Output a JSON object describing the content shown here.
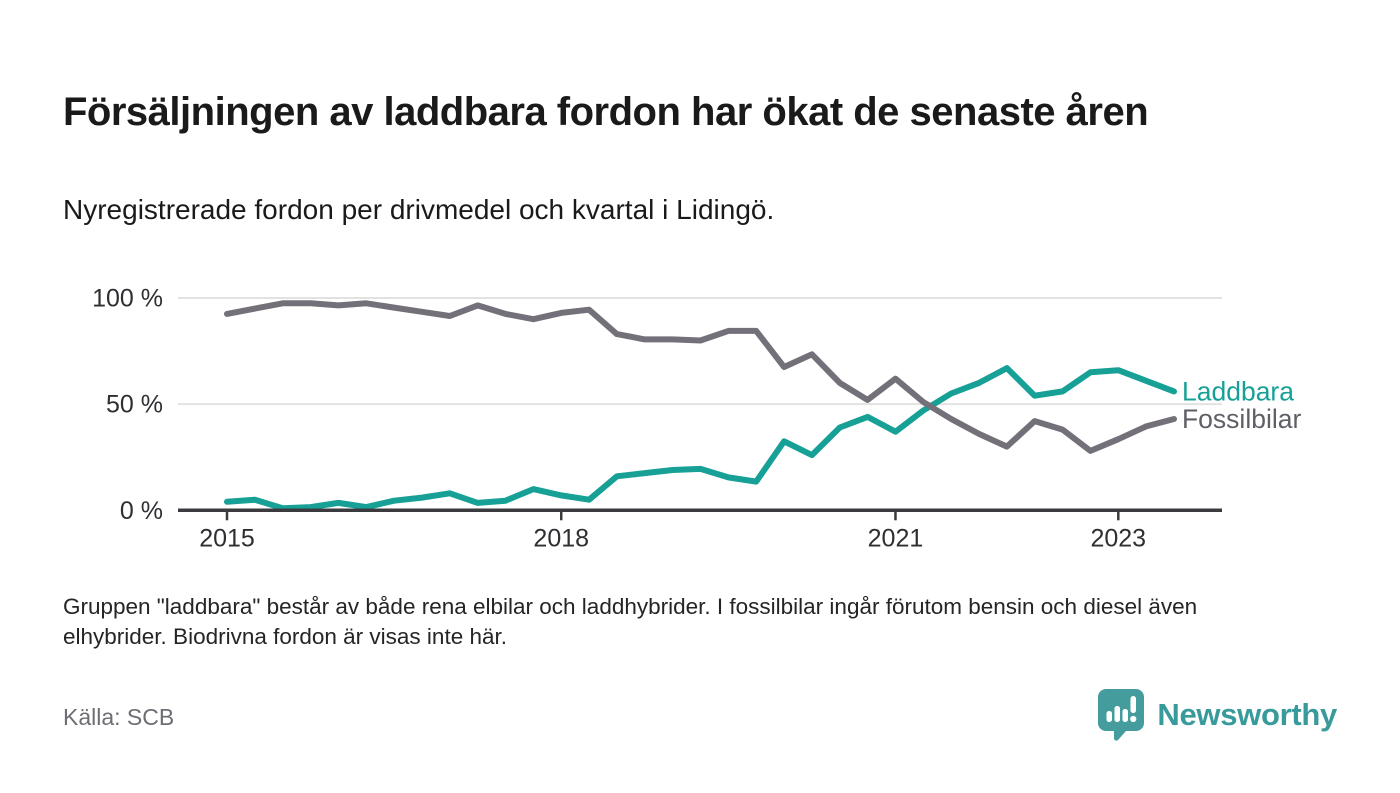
{
  "header": {
    "title": "Försäljningen av laddbara fordon har ökat de senaste åren",
    "subtitle": "Nyregistrerade fordon per drivmedel och kvartal i Lidingö."
  },
  "footer": {
    "note_line1": "Gruppen \"laddbara\" består av både rena elbilar och laddhybrider. I fossilbilar ingår förutom bensin och diesel även",
    "note_line2": "elhybrider. Biodrivna fordon är visas inte här.",
    "source": "Källa: SCB",
    "brand": "Newsworthy"
  },
  "colors": {
    "laddbara": "#16a096",
    "fossilbilar": "#747079",
    "fossilbilar_label": "#615e66",
    "grid": "#e2e2e2",
    "axis": "#3b3b3f",
    "tick_text": "#2f2f33",
    "brand_teal": "#459c9d"
  },
  "chart_data": {
    "type": "line",
    "title": "Försäljningen av laddbara fordon har ökat de senaste åren",
    "subtitle": "Nyregistrerade fordon per drivmedel och kvartal i Lidingö.",
    "unit": "%",
    "grid": true,
    "legend_position": "right-end",
    "ylim": [
      0,
      100
    ],
    "x_quarters": [
      "2015-K1",
      "2015-K2",
      "2015-K3",
      "2015-K4",
      "2016-K1",
      "2016-K2",
      "2016-K3",
      "2016-K4",
      "2017-K1",
      "2017-K2",
      "2017-K3",
      "2017-K4",
      "2018-K1",
      "2018-K2",
      "2018-K3",
      "2018-K4",
      "2019-K1",
      "2019-K2",
      "2019-K3",
      "2019-K4",
      "2020-K1",
      "2020-K2",
      "2020-K3",
      "2020-K4",
      "2021-K1",
      "2021-K2",
      "2021-K3",
      "2021-K4",
      "2022-K1",
      "2022-K2",
      "2022-K3",
      "2022-K4",
      "2023-K1",
      "2023-K2",
      "2023-K3"
    ],
    "x_tick_labels": [
      "2015",
      "2018",
      "2021",
      "2023"
    ],
    "x_tick_indices": [
      0,
      12,
      24,
      32
    ],
    "y_ticks": [
      {
        "value": 0,
        "label": "0 %"
      },
      {
        "value": 50,
        "label": "50 %"
      },
      {
        "value": 100,
        "label": "100 %"
      }
    ],
    "series": [
      {
        "name": "Laddbara",
        "color": "#16a096",
        "label_color": "#16a096",
        "values": [
          4,
          5,
          1,
          1.5,
          3.5,
          1.5,
          4.5,
          6,
          8,
          3.5,
          4.5,
          10,
          7,
          5,
          16,
          17.5,
          19,
          19.5,
          15.5,
          13.5,
          32.5,
          26,
          39,
          44,
          37,
          47,
          55,
          60,
          67,
          54,
          56,
          65,
          66,
          61,
          56
        ]
      },
      {
        "name": "Fossilbilar",
        "color": "#747079",
        "label_color": "#615e66",
        "values": [
          92.5,
          95,
          97.5,
          97.5,
          96.5,
          97.5,
          95.5,
          93.5,
          91.5,
          96.5,
          92.5,
          90,
          93,
          94.5,
          83,
          80.5,
          80.5,
          80,
          84.5,
          84.5,
          67.5,
          73.5,
          60,
          52,
          62,
          51,
          43,
          36,
          30,
          42,
          38,
          28,
          33.5,
          39.5,
          43
        ]
      }
    ]
  }
}
